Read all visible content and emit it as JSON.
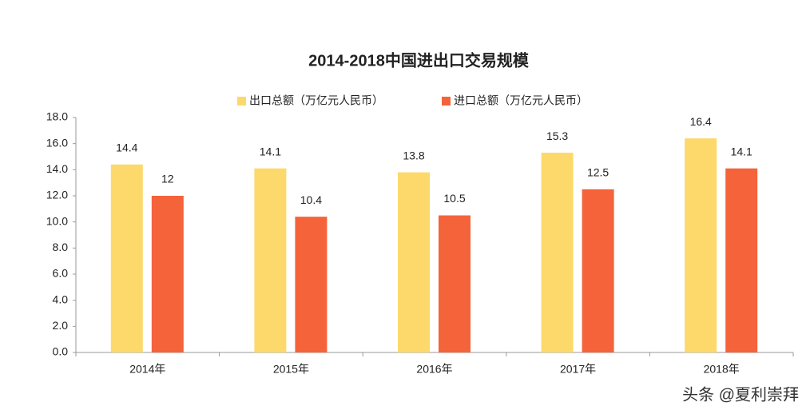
{
  "chart_data": {
    "type": "bar",
    "title": "2014-2018中国进出口交易规模",
    "categories": [
      "2014年",
      "2015年",
      "2016年",
      "2017年",
      "2018年"
    ],
    "series": [
      {
        "name": "出口总额（万亿元人民币）",
        "color": "#fcd96a",
        "values": [
          14.4,
          14.1,
          13.8,
          15.3,
          16.4
        ]
      },
      {
        "name": "进口总额（万亿元人民币）",
        "color": "#f5633a",
        "values": [
          12,
          10.4,
          10.5,
          12.5,
          14.1
        ]
      }
    ],
    "ylim": [
      0,
      18
    ],
    "yticks": [
      {
        "value": 0,
        "label": "0.0"
      },
      {
        "value": 2,
        "label": "2.0"
      },
      {
        "value": 4,
        "label": "4.0"
      },
      {
        "value": 6,
        "label": "6.0"
      },
      {
        "value": 8,
        "label": "8.0"
      },
      {
        "value": 10,
        "label": "10.0"
      },
      {
        "value": 12,
        "label": "12.0"
      },
      {
        "value": 14,
        "label": "14.0"
      },
      {
        "value": 16,
        "label": "16.0"
      },
      {
        "value": 18,
        "label": "18.0"
      }
    ],
    "legend": "top",
    "watermark": "头条 @夏利崇拜"
  }
}
